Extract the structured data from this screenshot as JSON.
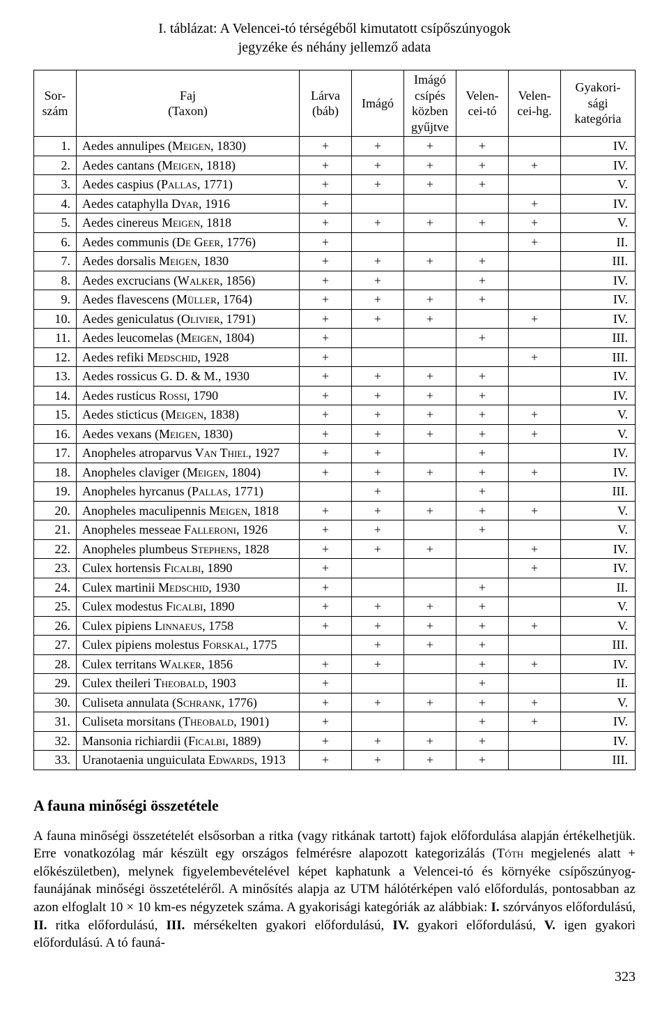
{
  "title_line1": "I. táblázat: A Velencei-tó térségéből kimutatott csípőszúnyogok",
  "title_line2": "jegyzéke és néhány jellemző adata",
  "headers": {
    "num_l1": "Sor-",
    "num_l2": "szám",
    "taxon_l1": "Faj",
    "taxon_l2": "(Taxon)",
    "larva_l1": "Lárva",
    "larva_l2": "(báb)",
    "imago": "Imágó",
    "csipes_l1": "Imágó",
    "csipes_l2": "csípés",
    "csipes_l3": "közben",
    "csipes_l4": "gyűjtve",
    "vto_l1": "Velen-",
    "vto_l2": "cei-tó",
    "vhg_l1": "Velen-",
    "vhg_l2": "cei-hg.",
    "cat_l1": "Gyakori-",
    "cat_l2": "sági",
    "cat_l3": "kategória"
  },
  "rows": [
    {
      "n": "1.",
      "t": "Aedes annulipes (M<span class=\"smallcaps\">eigen</span>, 1830)",
      "c": [
        "+",
        "+",
        "+",
        "+",
        "",
        "IV."
      ]
    },
    {
      "n": "2.",
      "t": "Aedes cantans (M<span class=\"smallcaps\">eigen</span>, 1818)",
      "c": [
        "+",
        "+",
        "+",
        "+",
        "+",
        "IV."
      ]
    },
    {
      "n": "3.",
      "t": "Aedes caspius (P<span class=\"smallcaps\">allas</span>, 1771)",
      "c": [
        "+",
        "+",
        "+",
        "+",
        "",
        "V."
      ]
    },
    {
      "n": "4.",
      "t": "Aedes cataphylla D<span class=\"smallcaps\">yar</span>, 1916",
      "c": [
        "+",
        "",
        "",
        "",
        "+",
        "IV."
      ]
    },
    {
      "n": "5.",
      "t": "Aedes cinereus M<span class=\"smallcaps\">eigen</span>, 1818",
      "c": [
        "+",
        "+",
        "+",
        "+",
        "+",
        "V."
      ]
    },
    {
      "n": "6.",
      "t": "Aedes communis (D<span class=\"smallcaps\">e</span> G<span class=\"smallcaps\">eer</span>, 1776)",
      "c": [
        "+",
        "",
        "",
        "",
        "+",
        "II."
      ]
    },
    {
      "n": "7.",
      "t": "Aedes dorsalis M<span class=\"smallcaps\">eigen</span>, 1830",
      "c": [
        "+",
        "+",
        "+",
        "+",
        "",
        "III."
      ]
    },
    {
      "n": "8.",
      "t": "Aedes excrucians (W<span class=\"smallcaps\">alker</span>, 1856)",
      "c": [
        "+",
        "+",
        "",
        "+",
        "",
        "IV."
      ]
    },
    {
      "n": "9.",
      "t": "Aedes flavescens (M<span class=\"smallcaps\">üller</span>, 1764)",
      "c": [
        "+",
        "+",
        "+",
        "+",
        "",
        "IV."
      ]
    },
    {
      "n": "10.",
      "t": "Aedes geniculatus (O<span class=\"smallcaps\">livier</span>, 1791)",
      "c": [
        "+",
        "+",
        "+",
        "",
        "+",
        "IV."
      ]
    },
    {
      "n": "11.",
      "t": "Aedes leucomelas (M<span class=\"smallcaps\">eigen</span>, 1804)",
      "c": [
        "+",
        "",
        "",
        "+",
        "",
        "III."
      ]
    },
    {
      "n": "12.",
      "t": "Aedes refiki M<span class=\"smallcaps\">edschid</span>, 1928",
      "c": [
        "+",
        "",
        "",
        "",
        "+",
        "III."
      ]
    },
    {
      "n": "13.",
      "t": "Aedes rossicus G. D. & M., 1930",
      "c": [
        "+",
        "+",
        "+",
        "+",
        "",
        "IV."
      ]
    },
    {
      "n": "14.",
      "t": "Aedes rusticus R<span class=\"smallcaps\">ossi</span>, 1790",
      "c": [
        "+",
        "+",
        "+",
        "+",
        "",
        "IV."
      ]
    },
    {
      "n": "15.",
      "t": "Aedes sticticus (M<span class=\"smallcaps\">eigen</span>, 1838)",
      "c": [
        "+",
        "+",
        "+",
        "+",
        "+",
        "V."
      ]
    },
    {
      "n": "16.",
      "t": "Aedes vexans (M<span class=\"smallcaps\">eigen</span>, 1830)",
      "c": [
        "+",
        "+",
        "+",
        "+",
        "+",
        "V."
      ]
    },
    {
      "n": "17.",
      "t": "Anopheles atroparvus V<span class=\"smallcaps\">an</span> T<span class=\"smallcaps\">hiel</span>, 1927",
      "c": [
        "+",
        "+",
        "",
        "+",
        "",
        "IV."
      ]
    },
    {
      "n": "18.",
      "t": "Anopheles claviger (M<span class=\"smallcaps\">eigen</span>, 1804)",
      "c": [
        "+",
        "+",
        "+",
        "+",
        "+",
        "IV."
      ]
    },
    {
      "n": "19.",
      "t": "Anopheles hyrcanus (P<span class=\"smallcaps\">allas</span>, 1771)",
      "c": [
        "",
        "+",
        "",
        "+",
        "",
        "III."
      ]
    },
    {
      "n": "20.",
      "t": "Anopheles maculipennis M<span class=\"smallcaps\">eigen</span>, 1818",
      "c": [
        "+",
        "+",
        "+",
        "+",
        "+",
        "V."
      ]
    },
    {
      "n": "21.",
      "t": "Anopheles messeae F<span class=\"smallcaps\">alleroni</span>, 1926",
      "c": [
        "+",
        "+",
        "",
        "+",
        "",
        "V."
      ]
    },
    {
      "n": "22.",
      "t": "Anopheles plumbeus S<span class=\"smallcaps\">tephens</span>, 1828",
      "c": [
        "+",
        "+",
        "+",
        "",
        "+",
        "IV."
      ]
    },
    {
      "n": "23.",
      "t": "Culex hortensis F<span class=\"smallcaps\">icalbi</span>, 1890",
      "c": [
        "+",
        "",
        "",
        "",
        "+",
        "IV."
      ]
    },
    {
      "n": "24.",
      "t": "Culex martinii M<span class=\"smallcaps\">edschid</span>, 1930",
      "c": [
        "+",
        "",
        "",
        "+",
        "",
        "II."
      ]
    },
    {
      "n": "25.",
      "t": "Culex modestus F<span class=\"smallcaps\">icalbi</span>, 1890",
      "c": [
        "+",
        "+",
        "+",
        "+",
        "",
        "V."
      ]
    },
    {
      "n": "26.",
      "t": "Culex pipiens L<span class=\"smallcaps\">innaeus</span>, 1758",
      "c": [
        "+",
        "+",
        "+",
        "+",
        "+",
        "V."
      ]
    },
    {
      "n": "27.",
      "t": "Culex pipiens molestus F<span class=\"smallcaps\">orskal</span>, 1775",
      "c": [
        "",
        "+",
        "+",
        "+",
        "",
        "III."
      ]
    },
    {
      "n": "28.",
      "t": "Culex territans W<span class=\"smallcaps\">alker</span>, 1856",
      "c": [
        "+",
        "+",
        "",
        "+",
        "+",
        "IV."
      ]
    },
    {
      "n": "29.",
      "t": "Culex theileri T<span class=\"smallcaps\">heobald</span>, 1903",
      "c": [
        "+",
        "",
        "",
        "+",
        "",
        "II."
      ]
    },
    {
      "n": "30.",
      "t": "Culiseta annulata (S<span class=\"smallcaps\">chrank</span>, 1776)",
      "c": [
        "+",
        "+",
        "+",
        "+",
        "+",
        "V."
      ]
    },
    {
      "n": "31.",
      "t": "Culiseta morsitans (T<span class=\"smallcaps\">heobald</span>, 1901)",
      "c": [
        "+",
        "",
        "",
        "+",
        "+",
        "IV."
      ]
    },
    {
      "n": "32.",
      "t": "Mansonia richiardii (F<span class=\"smallcaps\">icalbi</span>, 1889)",
      "c": [
        "+",
        "+",
        "+",
        "+",
        "",
        "IV."
      ]
    },
    {
      "n": "33.",
      "t": "Uranotaenia unguiculata E<span class=\"smallcaps\">dwards</span>, 1913",
      "c": [
        "+",
        "+",
        "+",
        "+",
        "",
        "III."
      ]
    }
  ],
  "section_heading": "A fauna minőségi összetétele",
  "paragraph_html": "A fauna minőségi összetételét elsősorban a ritka (vagy ritkának tartott) fajok előfordulása alapján értékelhetjük. Erre vonatkozólag már készült egy országos felmérésre alapozott kategorizálás (T<span class=\"smallcaps\">óth</span> megjelenés alatt + előkészületben), melynek figyelembevételével képet kaphatunk a Velencei-tó és környéke csípőszúnyog-faunájának minőségi összetételéről. A minősítés alapja az UTM hálótérképen való előfordulás, pontosabban az azon elfoglalt 10 × 10 km-es négyzetek száma. A gyakorisági kategóriák az alábbiak: <span class=\"bold\">I.</span> szórványos előfordulású, <span class=\"bold\">II.</span> ritka előfordulású, <span class=\"bold\">III.</span> mérsékelten gyakori előfordulású, <span class=\"bold\">IV.</span> gyakori előfordulású, <span class=\"bold\">V.</span> igen gyakori előfordulású. A tó fauná-",
  "page_number": "323"
}
